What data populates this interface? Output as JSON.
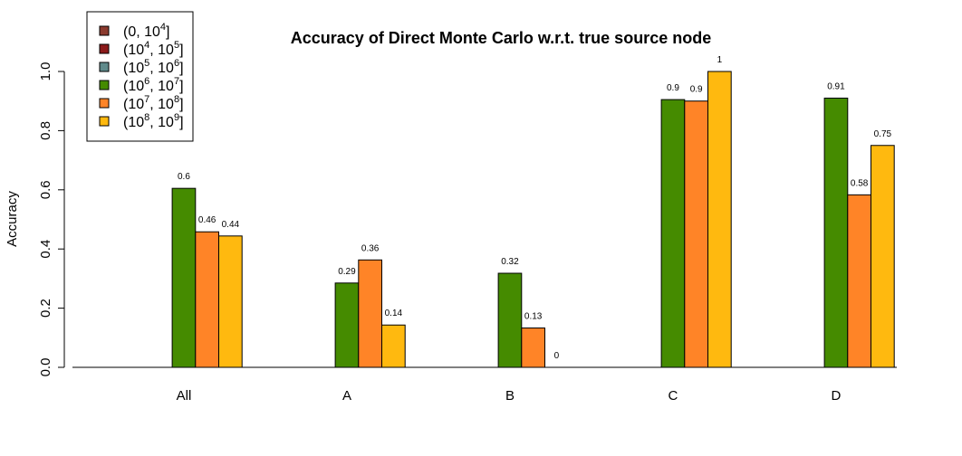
{
  "chart_data": {
    "type": "bar",
    "title": "Accuracy of Direct Monte Carlo w.r.t. true source node",
    "xlabel": "",
    "ylabel": "Accuracy",
    "ylim": [
      0,
      1.0
    ],
    "yticks": [
      "0.0",
      "0.2",
      "0.4",
      "0.6",
      "0.8",
      "1.0"
    ],
    "categories": [
      "All",
      "A",
      "B",
      "C",
      "D"
    ],
    "grid": false,
    "legend_position": "top-left",
    "legend": [
      {
        "base": "(0, 10",
        "exp1": "4",
        "mid": "",
        "exp2": "",
        "close": "]",
        "color": "#8B3A2E"
      },
      {
        "base": "(10",
        "exp1": "4",
        "mid": ", 10",
        "exp2": "5",
        "close": "]",
        "color": "#8B1A1A"
      },
      {
        "base": "(10",
        "exp1": "5",
        "mid": ", 10",
        "exp2": "6",
        "close": "]",
        "color": "#5F8A8B"
      },
      {
        "base": "(10",
        "exp1": "6",
        "mid": ", 10",
        "exp2": "7",
        "close": "]",
        "color": "#458B00"
      },
      {
        "base": "(10",
        "exp1": "7",
        "mid": ", 10",
        "exp2": "8",
        "close": "]",
        "color": "#FF8427"
      },
      {
        "base": "(10",
        "exp1": "8",
        "mid": ", 10",
        "exp2": "9",
        "close": "]",
        "color": "#FFB90F"
      }
    ],
    "series": [
      {
        "values": [
          null,
          null,
          null,
          null,
          null
        ]
      },
      {
        "values": [
          null,
          null,
          null,
          null,
          null
        ]
      },
      {
        "values": [
          null,
          null,
          null,
          null,
          null
        ]
      },
      {
        "values": [
          0.605,
          0.285,
          0.318,
          0.905,
          0.91
        ],
        "labels": [
          "0.6",
          "0.29",
          "0.32",
          "0.9",
          "0.91"
        ]
      },
      {
        "values": [
          0.458,
          0.363,
          0.133,
          0.9,
          0.583
        ],
        "labels": [
          "0.46",
          "0.36",
          "0.13",
          "0.9",
          "0.58"
        ]
      },
      {
        "values": [
          0.444,
          0.143,
          0.0,
          1.0,
          0.75
        ],
        "labels": [
          "0.44",
          "0.14",
          "0",
          "1",
          "0.75"
        ]
      }
    ]
  }
}
